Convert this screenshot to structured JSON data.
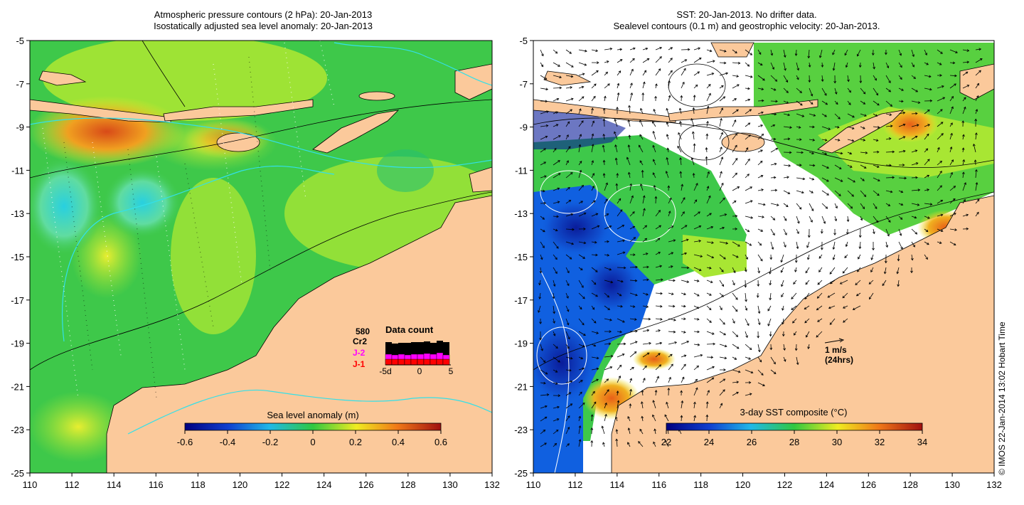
{
  "left_panel": {
    "title_line1": "Atmospheric pressure contours (2 hPa): 20-Jan-2013",
    "title_line2": "Isostatically adjusted sea level anomaly: 20-Jan-2013",
    "colorbar": {
      "title": "Sea level anomaly (m)",
      "ticks": [
        "-0.6",
        "-0.4",
        "-0.2",
        "0",
        "0.2",
        "0.4",
        "0.6"
      ]
    },
    "data_count": {
      "title": "Data count",
      "labels": {
        "s580": "580",
        "cr2": "Cr2",
        "j2": "J-2",
        "j1": "J-1"
      },
      "axis_ticks": [
        "-5d",
        "0",
        "5"
      ],
      "colors": {
        "j2": "#ff00ff",
        "j1": "#ff0000",
        "cr2": "#000000"
      }
    }
  },
  "right_panel": {
    "title_line1": "SST: 20-Jan-2013. No drifter data.",
    "title_line2": "Sealevel contours (0.1 m) and geostrophic velocity: 20-Jan-2013.",
    "colorbar": {
      "title": "3-day SST composite (°C)",
      "ticks": [
        "22",
        "24",
        "26",
        "28",
        "30",
        "32",
        "34"
      ]
    },
    "velocity_scale": {
      "line1": "1 m/s",
      "line2": "(24hrs)"
    }
  },
  "axes": {
    "lon_ticks": [
      "110",
      "112",
      "114",
      "116",
      "118",
      "120",
      "122",
      "124",
      "126",
      "128",
      "130",
      "132"
    ],
    "lat_ticks": [
      "-5",
      "-7",
      "-9",
      "-11",
      "-13",
      "-15",
      "-17",
      "-19",
      "-21",
      "-23",
      "-25"
    ]
  },
  "footer": "© IMOS 22-Jan-2014 13:02 Hobart Time",
  "colors": {
    "land": "#fbc99b",
    "sla_green": "#3ec84a",
    "sla_yellowgreen": "#a8e633",
    "sla_yellow": "#f0ec2c",
    "sla_orange": "#f08a1e",
    "sla_cyan": "#2ad8d8",
    "sst_blue": "#1060e0",
    "sst_darkblue": "#0a1c9a",
    "contour_cyan": "#33e0e8"
  }
}
